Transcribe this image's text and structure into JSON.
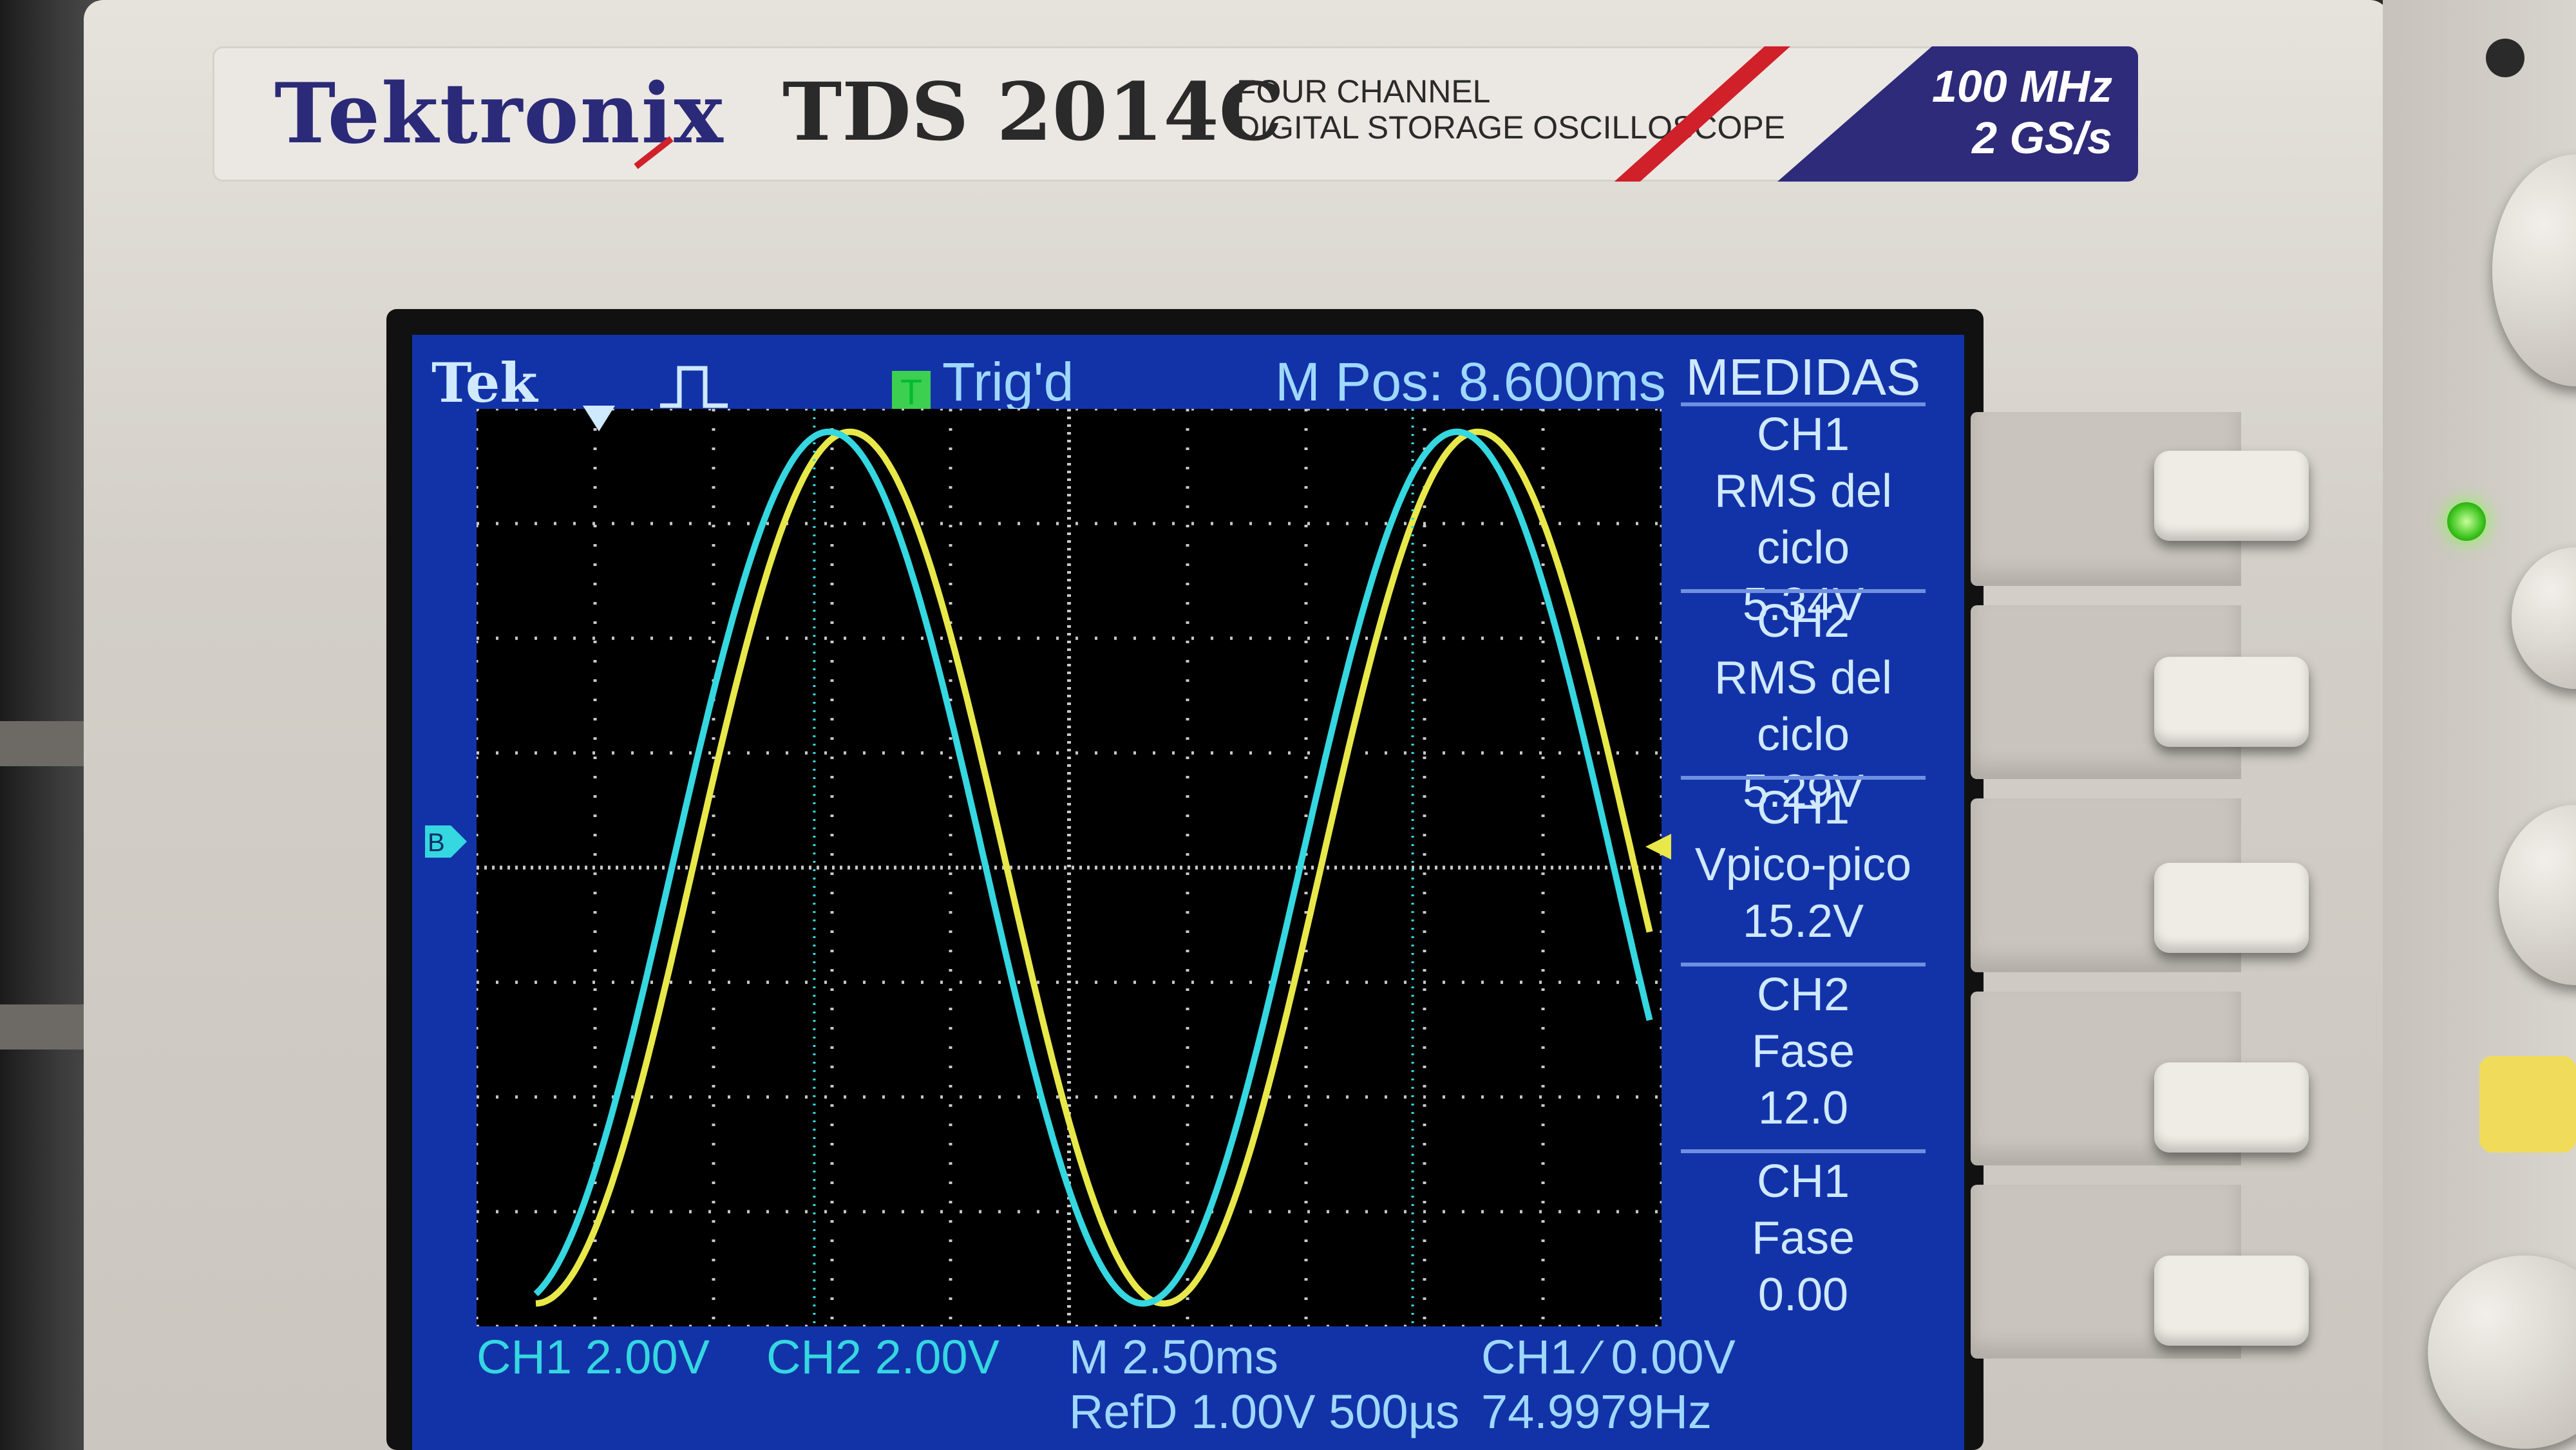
{
  "header": {
    "brand": "Tektronix",
    "model": "TDS 2014C",
    "subtitle_line1": "FOUR CHANNEL",
    "subtitle_line2": "DIGITAL STORAGE OSCILLOSCOPE",
    "bandwidth": "100 MHz",
    "sample_rate": "2 GS/s"
  },
  "status_bar": {
    "logo": "Tek",
    "trigger_state": "Trig'd",
    "trigger_icon": "T",
    "position": "M Pos: 8.600ms"
  },
  "menu": {
    "title": "MEDIDAS",
    "items": [
      {
        "line1": "CH1",
        "line2": "RMS del ciclo",
        "value": "5.34V"
      },
      {
        "line1": "CH2",
        "line2": "RMS del ciclo",
        "value": "5.29V"
      },
      {
        "line1": "CH1",
        "line2": "Vpico-pico",
        "value": "15.2V"
      },
      {
        "line1": "CH2",
        "line2": "Fase",
        "value": "12.0"
      },
      {
        "line1": "CH1",
        "line2": "Fase",
        "value": "0.00"
      }
    ]
  },
  "bottom_bar": {
    "ch1_scale": "CH1  2.00V",
    "ch2_scale": "CH2  2.00V",
    "timebase": "M 2.50ms",
    "reference": "RefD 1.00V 500µs",
    "trigger_info": "CH1 ∕ 0.00V",
    "frequency": "74.9979Hz"
  },
  "markers": {
    "ground_marker": "B",
    "run_icon": "pulse-icon"
  },
  "colors": {
    "screen_bg": "#1233a8",
    "ch1": "#e8e84a",
    "ch2": "#35d7e0",
    "grid": "#c8c8c8",
    "brand": "#2b2a78"
  },
  "chart_data": {
    "type": "line",
    "xlim": [
      0,
      10
    ],
    "ylim": [
      -4,
      4
    ],
    "grid": true,
    "series": [
      {
        "name": "CH1",
        "period_div": 5.3,
        "amplitude_div": 3.8,
        "phase_deg": 0
      },
      {
        "name": "CH2",
        "period_div": 5.3,
        "amplitude_div": 3.8,
        "phase_deg": 12.0
      }
    ]
  }
}
